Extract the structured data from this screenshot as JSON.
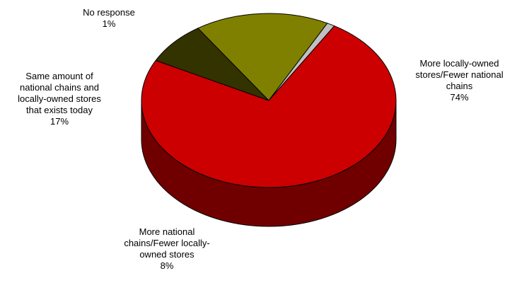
{
  "chart_data": {
    "type": "pie",
    "style": "3d",
    "slices": [
      {
        "id": "local",
        "lines": [
          "More locally-owned",
          "stores/Fewer national",
          "chains"
        ],
        "value": 74,
        "value_label": "74%",
        "color": "#cc0000"
      },
      {
        "id": "national",
        "lines": [
          "More national",
          "chains/Fewer locally-",
          "owned stores"
        ],
        "value": 8,
        "value_label": "8%",
        "color": "#333300"
      },
      {
        "id": "same",
        "lines": [
          "Same amount of",
          "national chains and",
          "locally-owned stores",
          "that exists today"
        ],
        "value": 17,
        "value_label": "17%",
        "color": "#808000"
      },
      {
        "id": "noresp",
        "lines": [
          "No response"
        ],
        "value": 1,
        "value_label": "1%",
        "color": "#c0c0c0"
      }
    ],
    "legend": "none"
  }
}
